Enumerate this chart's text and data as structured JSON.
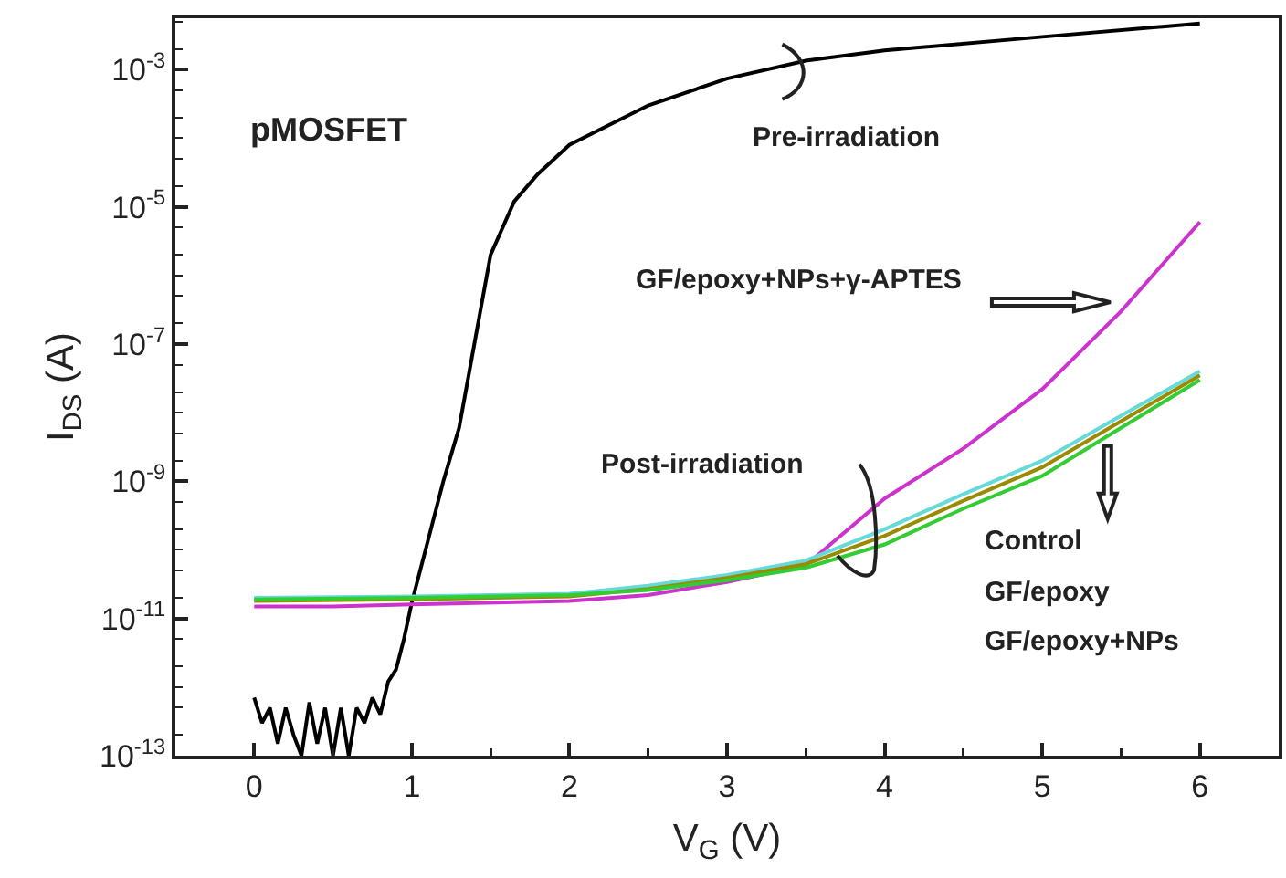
{
  "chart_data": {
    "type": "line",
    "xlabel": "V$_{G}$ (V)",
    "ylabel": "I$_{DS}$ (A)",
    "log": "y",
    "grid": false,
    "marker": "none",
    "line_style": "solid",
    "xlim": [
      -0.5,
      6.5
    ],
    "xticks": [
      0,
      1,
      2,
      3,
      4,
      5,
      6
    ],
    "ylim": [
      1e-13,
      0.0056
    ],
    "yticks": [
      {
        "value": 1e-13,
        "label": "10$^{-13}$"
      },
      {
        "value": 1e-11,
        "label": "10$^{-11}$"
      },
      {
        "value": 1e-09,
        "label": "10$^{-9}$"
      },
      {
        "value": 1e-07,
        "label": "10$^{-7}$"
      },
      {
        "value": 1e-05,
        "label": "10$^{-5}$"
      },
      {
        "value": 0.001,
        "label": "10$^{-3}$"
      }
    ],
    "series": [
      {
        "color": "#000000",
        "x": [
          0,
          0.05,
          0.1,
          0.15,
          0.2,
          0.25,
          0.3,
          0.35,
          0.4,
          0.45,
          0.5,
          0.55,
          0.6,
          0.65,
          0.7,
          0.75,
          0.8,
          0.85,
          0.9,
          0.95,
          1.0,
          1.1,
          1.2,
          1.3,
          1.4,
          1.5,
          1.65,
          1.8,
          2.0,
          2.5,
          3.0,
          3.5,
          4.0,
          5.0,
          6.0
        ],
        "values": [
          7e-13,
          3e-13,
          5e-13,
          1.5e-13,
          5e-13,
          2e-13,
          1e-13,
          6e-13,
          1.5e-13,
          5e-13,
          1e-13,
          5e-13,
          1e-13,
          5e-13,
          3e-13,
          7e-13,
          4e-13,
          1.2e-12,
          1.8e-12,
          5e-12,
          1.7e-11,
          1.3e-10,
          1e-09,
          6e-09,
          1.1e-07,
          2e-06,
          1.2e-05,
          3e-05,
          8e-05,
          0.0003,
          0.00074,
          0.00135,
          0.0019,
          0.003,
          0.0047
        ]
      },
      {
        "color": "#cc33cc",
        "x": [
          0,
          0.5,
          1,
          2,
          2.5,
          3,
          3.5,
          4,
          4.5,
          5,
          5.5,
          6
        ],
        "values": [
          1.5e-11,
          1.5e-11,
          1.6e-11,
          1.8e-11,
          2.2e-11,
          3.4e-11,
          6e-11,
          5.6e-10,
          3e-09,
          2.2e-08,
          3e-07,
          6e-06
        ]
      },
      {
        "color": "#66d9d9",
        "x": [
          0,
          1,
          2,
          2.5,
          3,
          3.5,
          4,
          4.5,
          5,
          5.5,
          6
        ],
        "values": [
          2e-11,
          2.1e-11,
          2.3e-11,
          3e-11,
          4.3e-11,
          7e-11,
          2e-10,
          6.5e-10,
          2e-09,
          9e-09,
          4e-08
        ]
      },
      {
        "color": "#9a8a00",
        "x": [
          0,
          1,
          2,
          2.5,
          3,
          3.5,
          4,
          4.5,
          5,
          5.5,
          6
        ],
        "values": [
          1.8e-11,
          1.9e-11,
          2.1e-11,
          2.7e-11,
          3.9e-11,
          6.2e-11,
          1.6e-10,
          5.2e-10,
          1.6e-09,
          7.5e-09,
          3.5e-08
        ]
      },
      {
        "color": "#33cc33",
        "x": [
          0,
          1,
          2,
          2.5,
          3,
          3.5,
          4,
          4.5,
          5,
          5.5,
          6
        ],
        "values": [
          1.9e-11,
          2e-11,
          2.2e-11,
          2.6e-11,
          3.6e-11,
          5.5e-11,
          1.2e-10,
          4e-10,
          1.2e-09,
          6e-09,
          3e-08
        ]
      }
    ],
    "annotations": [
      "pMOSFET",
      "Pre-irradiation",
      "GF/epoxy+NPs+γ-APTES",
      "Post-irradiation",
      "Control",
      "GF/epoxy",
      "GF/epoxy+NPs"
    ]
  }
}
